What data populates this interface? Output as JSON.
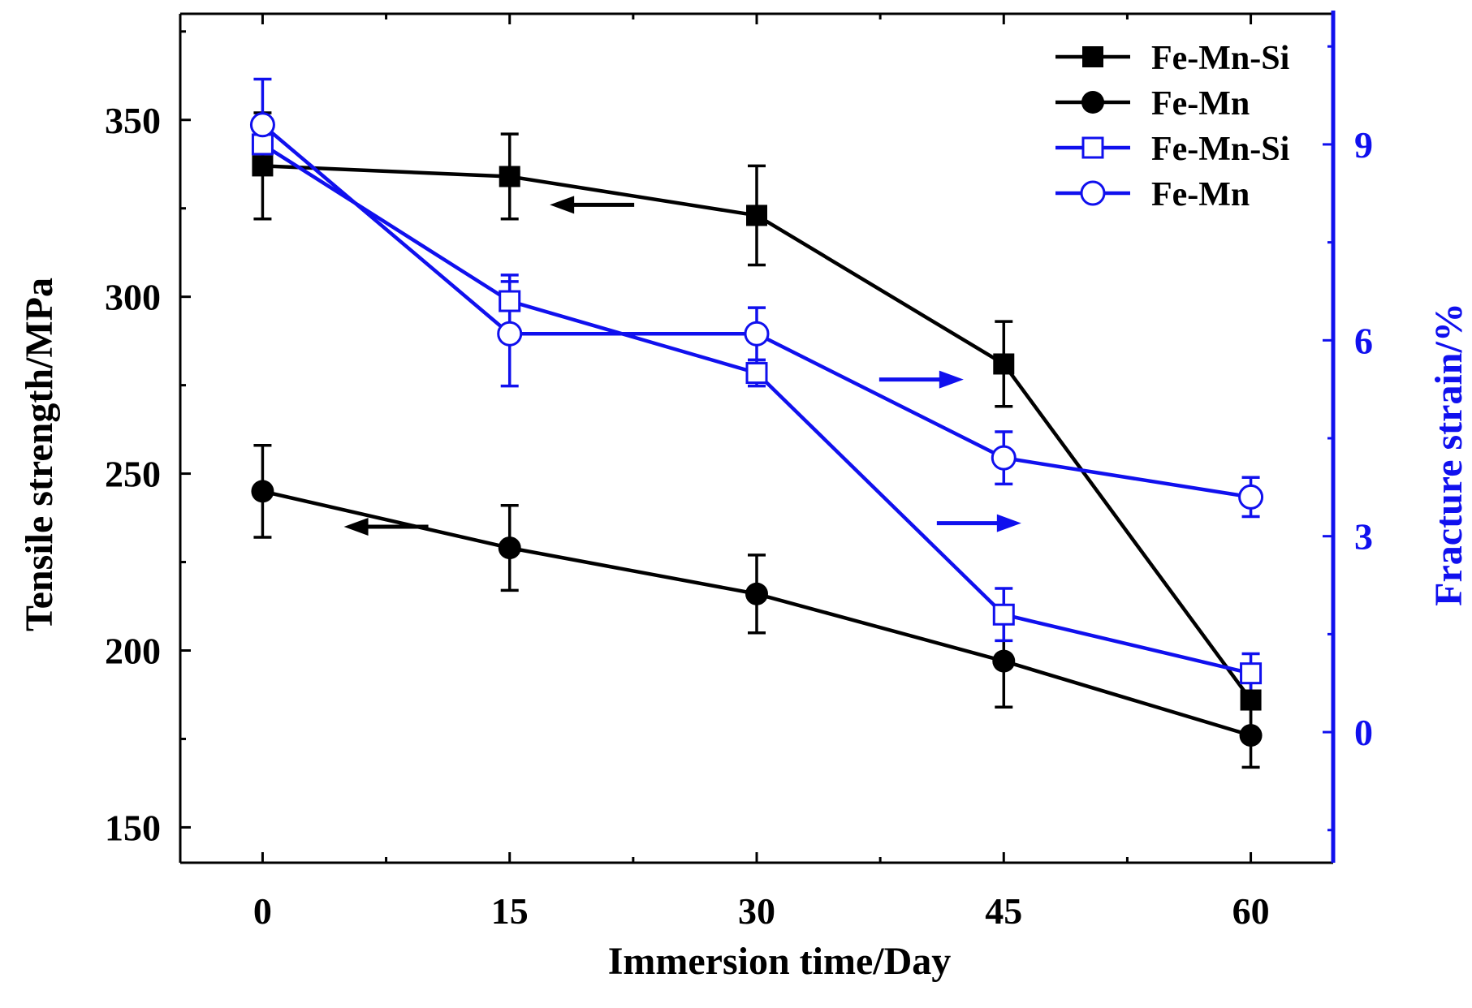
{
  "chart_data": {
    "type": "line",
    "x": [
      0,
      15,
      30,
      45,
      60
    ],
    "xlabel": "Immersion time/Day",
    "ylabel": "Tensile strength/MPa",
    "ylabel_right": "Fracture strain/%",
    "xlim": [
      -5,
      65
    ],
    "ylim": [
      140,
      380
    ],
    "ylim_right": [
      -2,
      11
    ],
    "x_ticks": [
      0,
      15,
      30,
      45,
      60
    ],
    "y_ticks": [
      150,
      200,
      250,
      300,
      350
    ],
    "y_right_ticks": [
      0,
      3,
      6,
      9
    ],
    "x_tick_labels": [
      "0",
      "15",
      "30",
      "45",
      "60"
    ],
    "y_tick_labels": [
      "150",
      "200",
      "250",
      "300",
      "350"
    ],
    "y_right_tick_labels": [
      "0",
      "3",
      "6",
      "9"
    ],
    "legend_position": "top-right",
    "colors": {
      "left_axis": "#000000",
      "right_axis": "#1010ee"
    },
    "series": [
      {
        "name": "Fe-Mn-Si",
        "axis": "left",
        "marker": "square-filled",
        "color": "#000000",
        "values": [
          337,
          334,
          323,
          281,
          186
        ],
        "errors": [
          15,
          12,
          14,
          12,
          9
        ]
      },
      {
        "name": "Fe-Mn",
        "axis": "left",
        "marker": "circle-filled",
        "color": "#000000",
        "values": [
          245,
          229,
          216,
          197,
          176
        ],
        "errors": [
          13,
          12,
          11,
          13,
          9
        ]
      },
      {
        "name": "Fe-Mn-Si",
        "axis": "right",
        "marker": "square-open",
        "color": "#1010ee",
        "values": [
          9.0,
          6.6,
          5.5,
          1.8,
          0.9
        ],
        "errors": [
          0.4,
          0.4,
          0.2,
          0.4,
          0.3
        ]
      },
      {
        "name": "Fe-Mn",
        "axis": "right",
        "marker": "circle-open",
        "color": "#1010ee",
        "values": [
          9.3,
          6.1,
          6.1,
          4.2,
          3.6
        ],
        "errors": [
          0.7,
          0.8,
          0.4,
          0.4,
          0.3
        ]
      }
    ],
    "annotations": [
      {
        "type": "arrow",
        "direction": "left",
        "series": "Fe-Mn-Si (tensile)",
        "at_x": 20,
        "at_y": 326
      },
      {
        "type": "arrow",
        "direction": "left",
        "series": "Fe-Mn (tensile)",
        "at_x": 7.5,
        "at_y": 235
      },
      {
        "type": "arrow",
        "direction": "right",
        "series": "Fe-Mn (strain)",
        "at_x": 40,
        "at_y_right": 5.4
      },
      {
        "type": "arrow",
        "direction": "right",
        "series": "Fe-Mn-Si (strain)",
        "at_x": 43.5,
        "at_y_right": 3.2
      }
    ]
  }
}
